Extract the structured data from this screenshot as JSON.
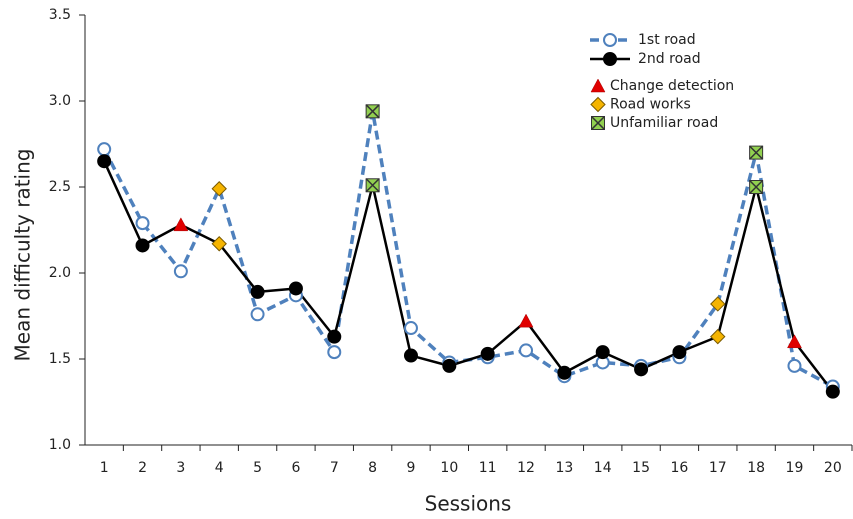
{
  "chart_data": {
    "type": "line",
    "x_label": "Sessions",
    "y_label": "Mean difficulty rating",
    "categories": [
      "1",
      "2",
      "3",
      "4",
      "5",
      "6",
      "7",
      "8",
      "9",
      "10",
      "11",
      "12",
      "13",
      "14",
      "15",
      "16",
      "17",
      "18",
      "19",
      "20"
    ],
    "ylim": [
      1.0,
      3.5
    ],
    "yticks": [
      {
        "value": 1.0,
        "label": "1.0"
      },
      1.5,
      {
        "value": 2.0,
        "label": "2.0"
      },
      2.5,
      {
        "value": 3.0,
        "label": "3.0"
      },
      3.5
    ],
    "grid": false,
    "legend": "top-right",
    "series": [
      {
        "name": "1st road",
        "color": "#4f81bd",
        "dashed": true,
        "filled": false,
        "values": [
          2.72,
          2.29,
          2.01,
          2.49,
          1.76,
          1.87,
          1.54,
          2.94,
          1.68,
          1.48,
          1.51,
          1.55,
          1.4,
          1.48,
          1.46,
          1.51,
          1.82,
          2.7,
          1.46,
          1.34
        ],
        "markers": [
          "circle",
          "circle",
          "circle",
          "diamond",
          "circle",
          "circle",
          "circle",
          "square",
          "circle",
          "circle",
          "circle",
          "circle",
          "circle",
          "circle",
          "circle",
          "circle",
          "diamond",
          "square",
          "circle",
          "circle"
        ]
      },
      {
        "name": "2nd road",
        "color": "#000000",
        "dashed": false,
        "filled": true,
        "values": [
          2.65,
          2.16,
          2.28,
          2.17,
          1.89,
          1.91,
          1.63,
          2.51,
          1.52,
          1.46,
          1.53,
          1.72,
          1.42,
          1.54,
          1.44,
          1.54,
          1.63,
          2.5,
          1.6,
          1.31
        ],
        "markers": [
          "circle",
          "circle",
          "triangle",
          "diamond",
          "circle",
          "circle",
          "circle",
          "square",
          "circle",
          "circle",
          "circle",
          "triangle",
          "circle",
          "circle",
          "circle",
          "circle",
          "diamond",
          "square",
          "triangle",
          "circle"
        ]
      }
    ],
    "events": [
      {
        "name": "Change detection",
        "shape": "triangle",
        "color": "#e00000"
      },
      {
        "name": "Road works",
        "shape": "diamond",
        "color": "#f5b400"
      },
      {
        "name": "Unfamiliar road",
        "shape": "square",
        "color": "#92d050"
      }
    ]
  }
}
